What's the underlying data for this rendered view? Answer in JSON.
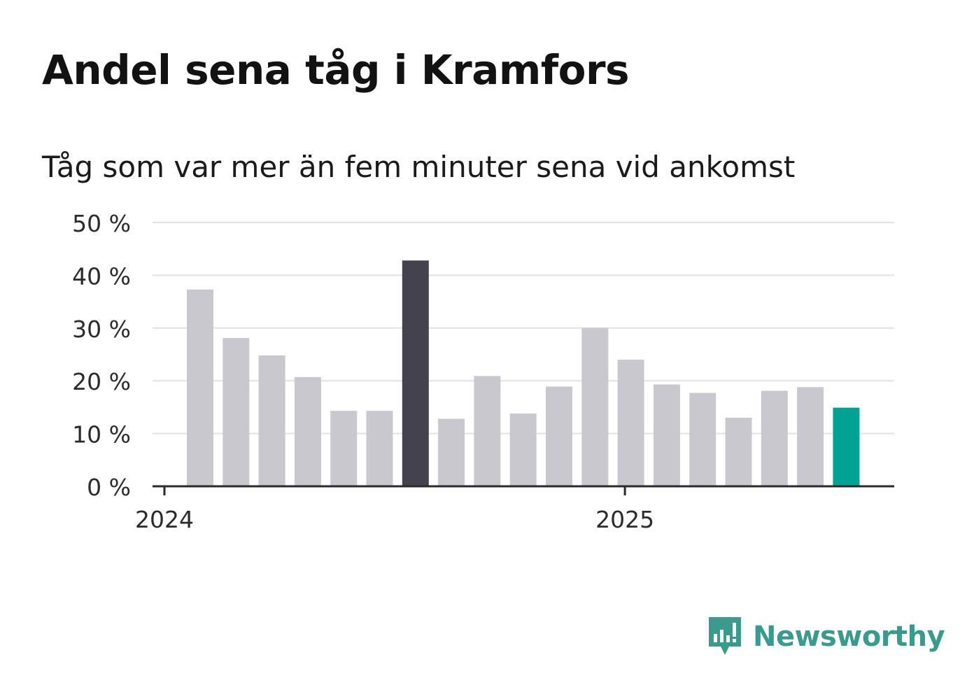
{
  "title": "Andel sena tåg i Kramfors",
  "subtitle": "Tåg som var mer än fem minuter sena vid ankomst",
  "brand": {
    "name": "Newsworthy",
    "icon": "newsworthy-chart-bubble-icon",
    "color": "#3a9a8d"
  },
  "colors": {
    "default": "#c9c8cf",
    "highlight": "#43424e",
    "latest": "#00a393",
    "axis": "#2a2a2a",
    "grid": "#e2e2e2"
  },
  "chart_data": {
    "type": "bar",
    "title": "Andel sena tåg i Kramfors",
    "subtitle": "Tåg som var mer än fem minuter sena vid ankomst",
    "x_ticks": [
      "2024",
      "2025"
    ],
    "x_tick_positions": [
      0,
      12
    ],
    "ylim": [
      0,
      50
    ],
    "y_ticks": [
      "0 %",
      "10 %",
      "20 %",
      "30 %",
      "40 %",
      "50 %"
    ],
    "grid": true,
    "values": [
      37.3,
      28.1,
      24.8,
      20.7,
      14.3,
      14.3,
      42.8,
      12.8,
      20.9,
      13.8,
      18.9,
      30.0,
      24.0,
      19.3,
      17.7,
      13.0,
      18.1,
      18.8,
      14.9
    ],
    "highlight_index": 6,
    "latest_index": 18
  }
}
